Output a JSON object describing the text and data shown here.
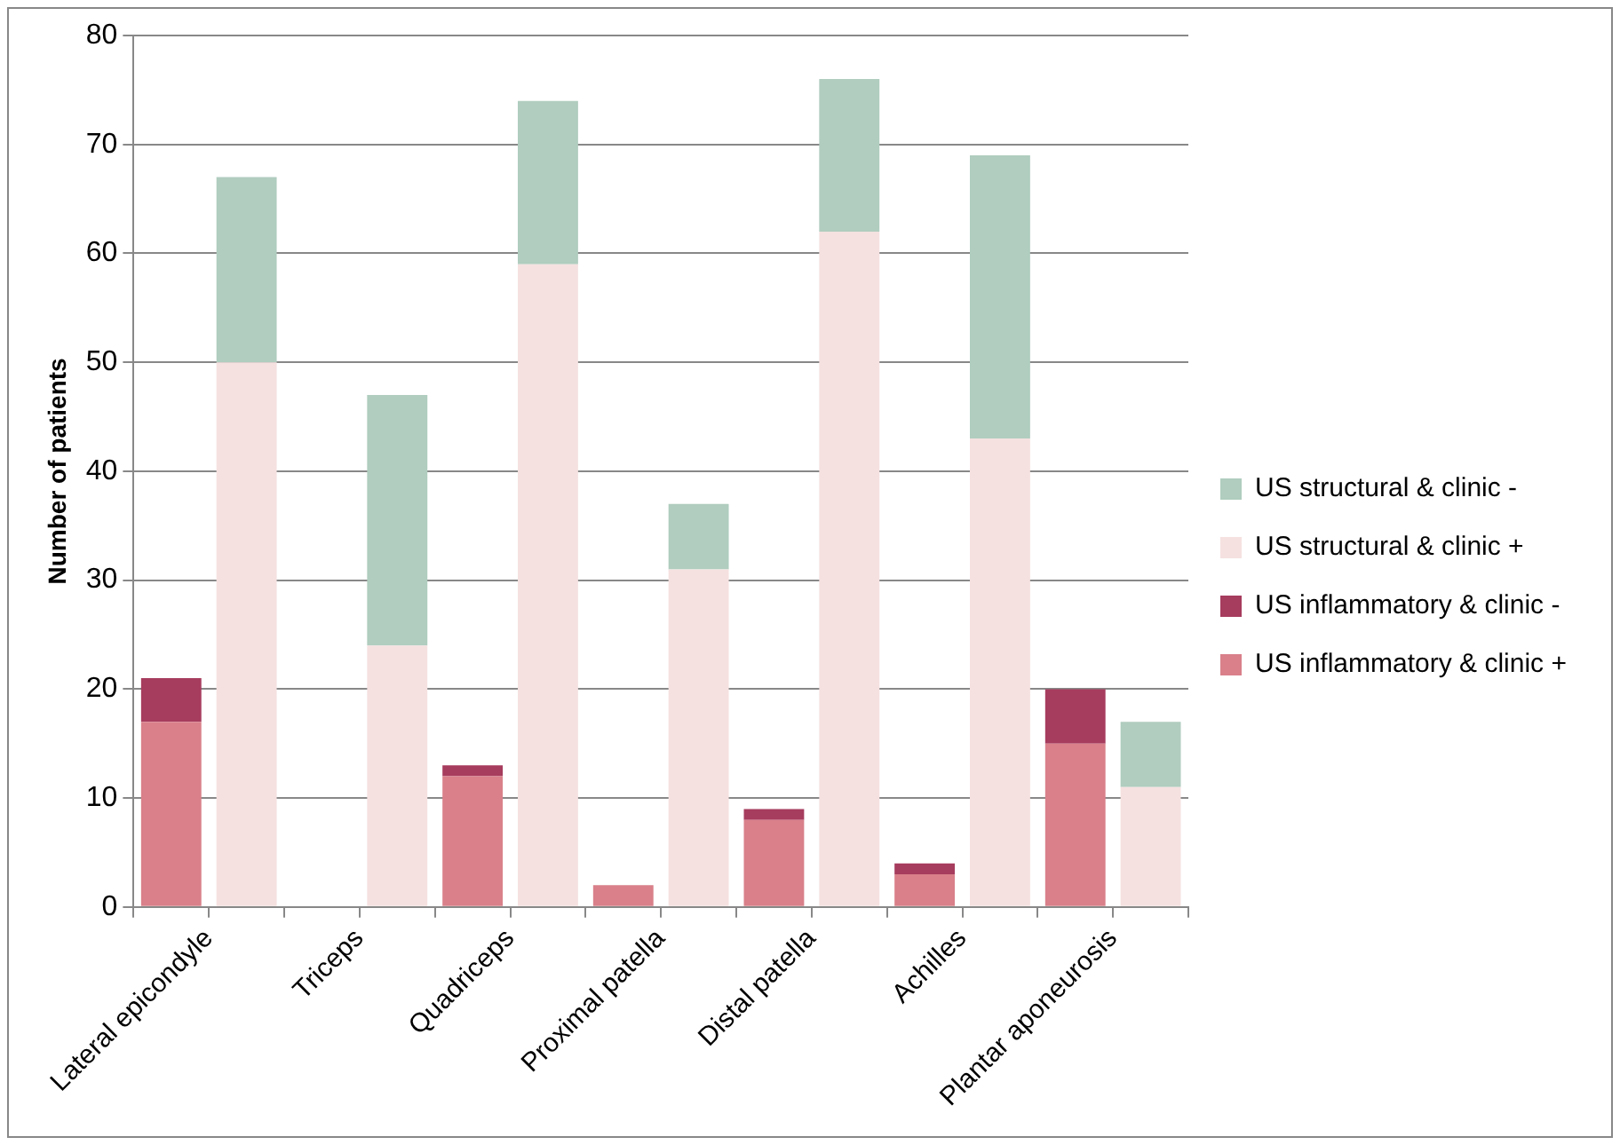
{
  "chart_data": {
    "type": "bar",
    "stacked": true,
    "ylabel": "Number of patients",
    "categories": [
      "Lateral epicondyle",
      null,
      "Triceps",
      null,
      "Quadriceps",
      null,
      "Proximal patella",
      null,
      "Distal patella",
      null,
      "Achilles",
      null,
      "Plantar aponeurosis",
      null
    ],
    "series": [
      {
        "name": "US inflammatory & clinic +",
        "color": "#d9808a",
        "values": [
          17,
          null,
          0,
          null,
          12,
          null,
          2,
          null,
          8,
          null,
          3,
          null,
          15,
          null
        ]
      },
      {
        "name": "US inflammatory & clinic -",
        "color": "#a63c5e",
        "values": [
          4,
          null,
          0,
          null,
          1,
          null,
          0,
          null,
          1,
          null,
          1,
          null,
          5,
          null
        ]
      },
      {
        "name": "US structural & clinic +",
        "color": "#f5e1e0",
        "values": [
          null,
          50,
          null,
          24,
          null,
          59,
          null,
          31,
          null,
          62,
          null,
          43,
          null,
          11
        ]
      },
      {
        "name": "US structural & clinic -",
        "color": "#b0cdbf",
        "values": [
          null,
          17,
          null,
          23,
          null,
          15,
          null,
          6,
          null,
          14,
          null,
          26,
          null,
          6
        ]
      }
    ],
    "ylim": [
      0,
      80
    ],
    "yticks": [
      0,
      10,
      20,
      30,
      40,
      50,
      60,
      70,
      80
    ],
    "grid": "y",
    "legend": "right"
  }
}
